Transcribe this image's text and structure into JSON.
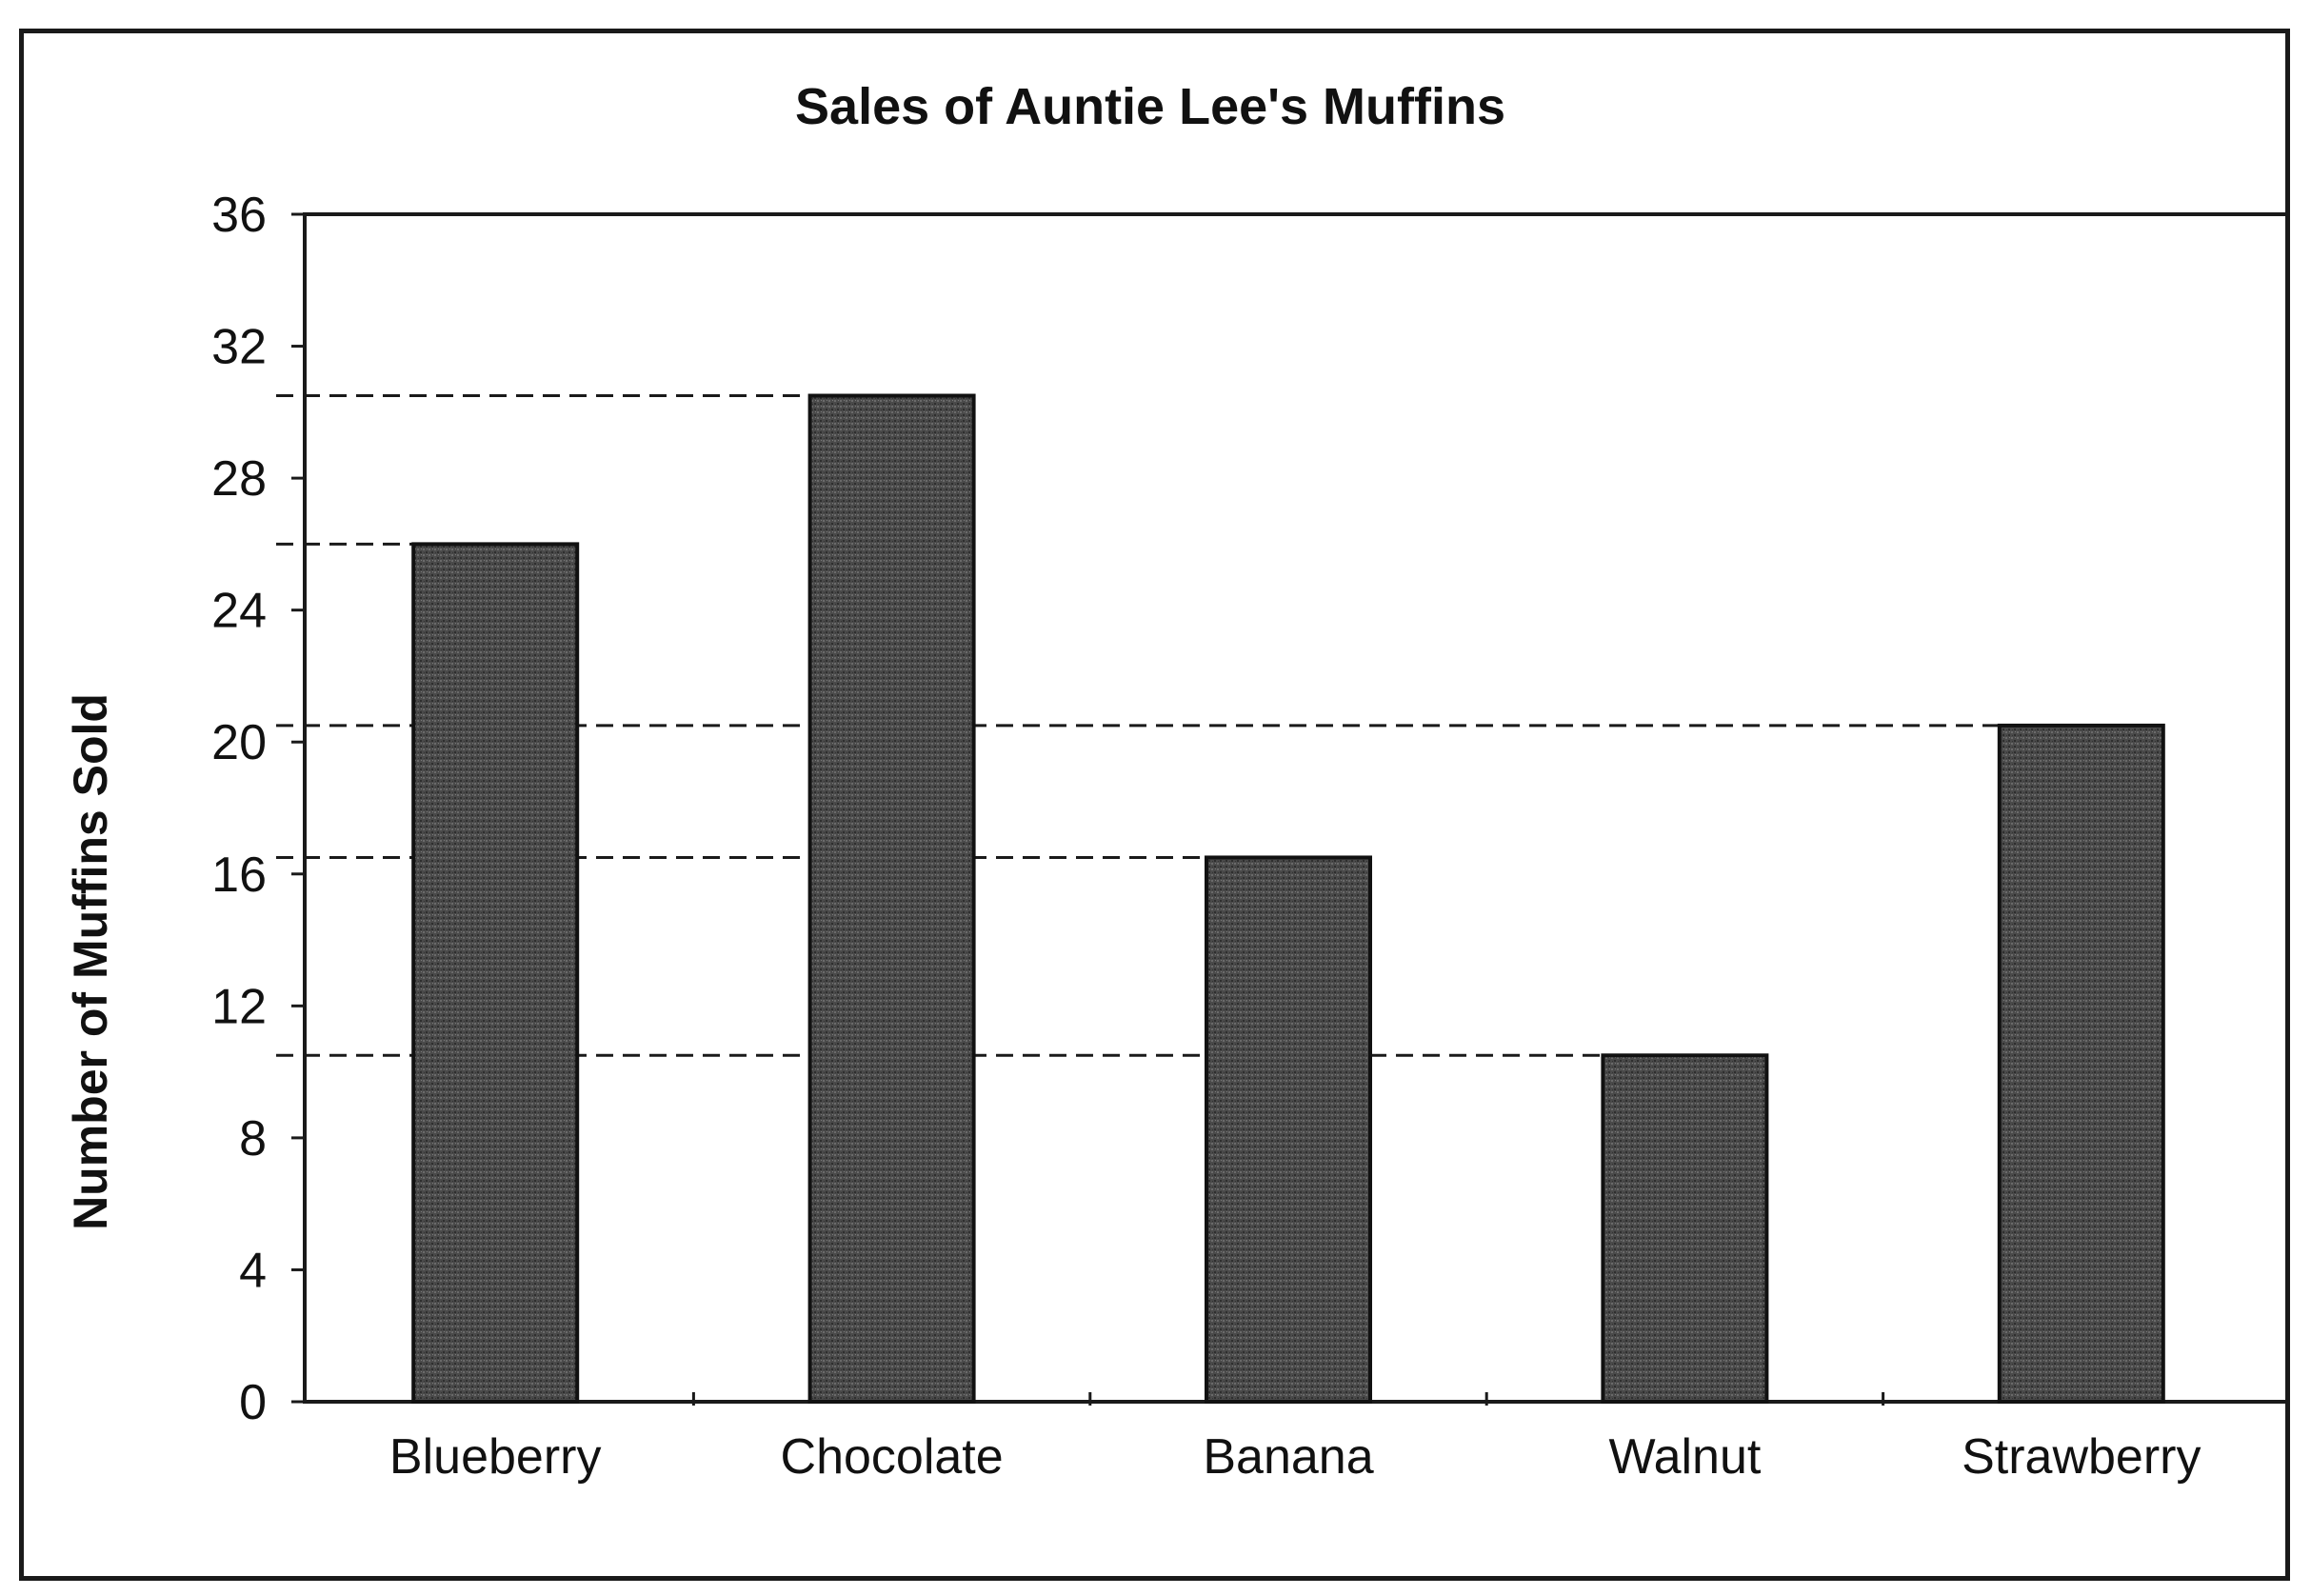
{
  "chart_data": {
    "type": "bar",
    "title": "Sales of Auntie Lee's Muffins",
    "xlabel": "",
    "ylabel": "Number of Muffins Sold",
    "categories": [
      "Blueberry",
      "Chocolate",
      "Banana",
      "Walnut",
      "Strawberry"
    ],
    "values": [
      26,
      30.5,
      16.5,
      10.5,
      20.5
    ],
    "ylim": [
      0,
      36
    ],
    "yticks": [
      "0",
      "4",
      "8",
      "12",
      "16",
      "20",
      "24",
      "28",
      "32",
      "36"
    ],
    "reference_lines": [
      30.5,
      26,
      20.5,
      16.5,
      10.5
    ],
    "grid": false,
    "legend": "none",
    "colors": {
      "bar": "#4a4a4a",
      "bar_edge": "#111111",
      "axis": "#1a1a1a",
      "dash": "#1a1a1a"
    }
  }
}
